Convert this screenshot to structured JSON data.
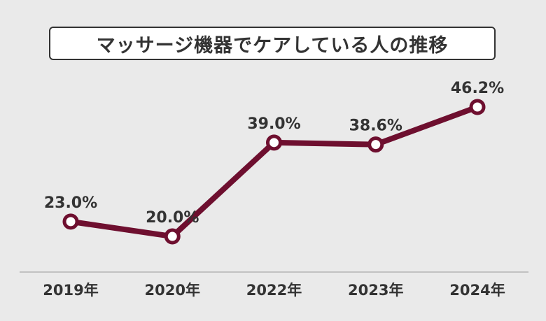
{
  "chart_data": {
    "type": "line",
    "title": "マッサージ機器でケアしている人の推移",
    "categories": [
      "2019年",
      "2020年",
      "2022年",
      "2023年",
      "2024年"
    ],
    "series": [
      {
        "values": [
          23.0,
          20.0,
          39.0,
          38.6,
          46.2
        ],
        "labels": [
          "23.0%",
          "20.0%",
          "39.0%",
          "38.6%",
          "46.2%"
        ]
      }
    ],
    "ylim": [
      5,
      52
    ],
    "grid": false,
    "legend": "none",
    "colors": {
      "line": "#6e0f2f",
      "marker_fill": "#ffffff",
      "text": "#333333",
      "background": "#eaeaea",
      "axis": "#999999"
    }
  }
}
